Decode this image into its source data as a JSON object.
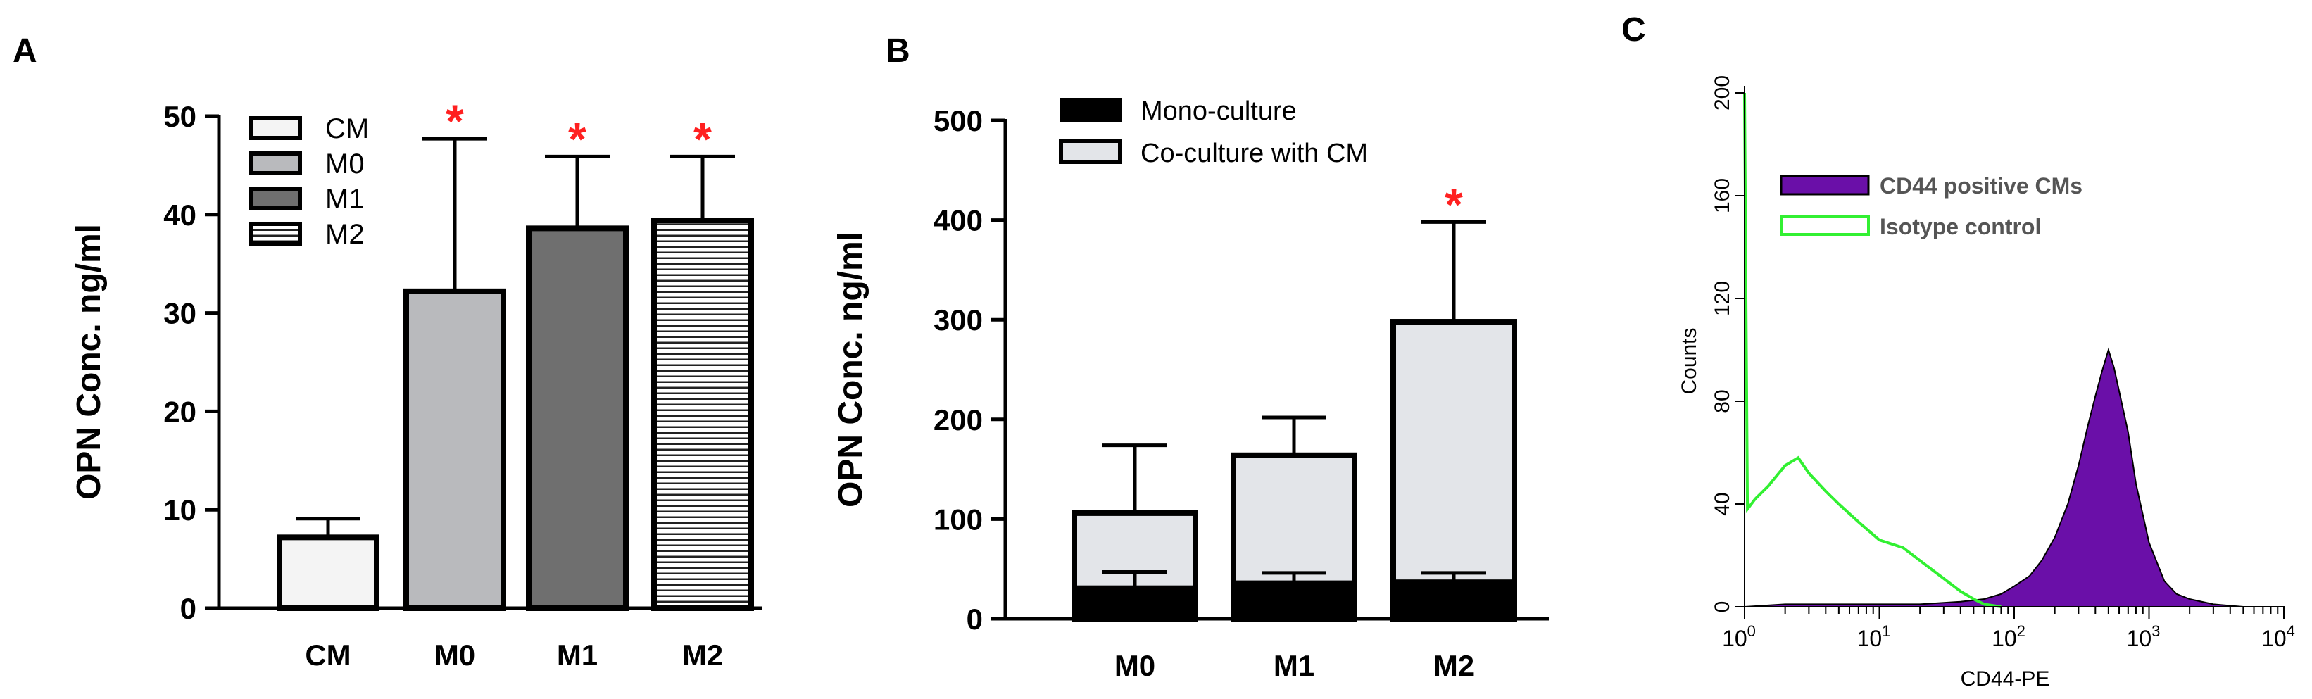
{
  "panels": {
    "a": {
      "letter": "A"
    },
    "b": {
      "letter": "B"
    },
    "c": {
      "letter": "C"
    }
  },
  "colors": {
    "cm_fill": "#f4f4f4",
    "m0_fill": "#b9babd",
    "m1_fill": "#6f6f6f",
    "mono_fill": "#000000",
    "coculture_fill": "#e3e5e9",
    "cd44_fill": "#6a0fa8",
    "isotype_line": "#32f032",
    "star": "#ff2020"
  },
  "chart_data": [
    {
      "type": "bar",
      "panel": "A",
      "categories": [
        "CM",
        "M0",
        "M1",
        "M2"
      ],
      "values": [
        7.2,
        32.2,
        38.6,
        39.4
      ],
      "error_upper": [
        9.1,
        47.7,
        45.9,
        45.9
      ],
      "significance": [
        false,
        true,
        true,
        true
      ],
      "significance_marker": "*",
      "ylabel": "OPN Conc. ng/ml",
      "ylim": [
        0,
        50
      ],
      "yticks": [
        0,
        10,
        20,
        30,
        40,
        50
      ],
      "legend": [
        "CM",
        "M0",
        "M1",
        "M2"
      ],
      "legend_position": "top-left",
      "grid": false
    },
    {
      "type": "bar",
      "panel": "B",
      "stacked": true,
      "categories": [
        "M0",
        "M1",
        "M2"
      ],
      "series": [
        {
          "name": "Mono-culture",
          "values": [
            32,
            37,
            38
          ],
          "error_upper": [
            47,
            46,
            46
          ]
        },
        {
          "name": "Co-culture with CM",
          "values": [
            106,
            164,
            298
          ],
          "error_upper": [
            174,
            202,
            398
          ]
        }
      ],
      "significance": [
        false,
        false,
        true
      ],
      "significance_marker": "*",
      "ylabel": "OPN Conc. ng/ml",
      "ylim": [
        0,
        500
      ],
      "yticks": [
        0,
        100,
        200,
        300,
        400,
        500
      ],
      "legend_position": "top-left",
      "grid": false
    },
    {
      "type": "area",
      "panel": "C",
      "xscale": "log",
      "xlabel": "CD44-PE",
      "ylabel": "Counts",
      "xlim": [
        1,
        10000
      ],
      "ylim": [
        0,
        200
      ],
      "yticks": [
        "0",
        "40",
        "80",
        "120",
        "160",
        "200"
      ],
      "xtick_bases": [
        "10",
        "10",
        "10",
        "10",
        "10"
      ],
      "xtick_exponents": [
        "0",
        "1",
        "2",
        "3",
        "4"
      ],
      "series": [
        {
          "name": "CD44 positive CMs",
          "style": "filled",
          "x": [
            1,
            2,
            5,
            10,
            20,
            40,
            60,
            80,
            100,
            130,
            160,
            200,
            250,
            300,
            350,
            400,
            450,
            500,
            550,
            600,
            700,
            800,
            1000,
            1300,
            1600,
            2000,
            3000,
            5000,
            10000
          ],
          "y": [
            0,
            1,
            1,
            1,
            1,
            2,
            3,
            5,
            8,
            12,
            18,
            27,
            40,
            55,
            70,
            82,
            92,
            100,
            93,
            84,
            68,
            48,
            25,
            10,
            5,
            3,
            1,
            0,
            0
          ]
        },
        {
          "name": "Isotype control",
          "style": "line",
          "x": [
            1,
            1.05,
            1.2,
            1.5,
            2,
            2.5,
            3,
            4,
            5,
            7,
            10,
            15,
            20,
            30,
            40,
            50,
            60,
            80
          ],
          "y": [
            200,
            38,
            42,
            47,
            55,
            58,
            52,
            45,
            40,
            33,
            26,
            23,
            18,
            11,
            6,
            3,
            1,
            0
          ]
        }
      ],
      "legend_position": "top-left",
      "grid": false
    }
  ]
}
